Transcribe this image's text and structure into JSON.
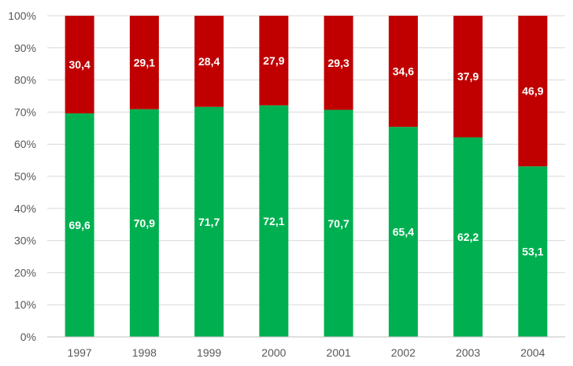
{
  "chart_data": {
    "type": "bar",
    "stacked": true,
    "percent_stacked": true,
    "title": "",
    "xlabel": "",
    "ylabel": "",
    "categories": [
      "1997",
      "1998",
      "1999",
      "2000",
      "2001",
      "2002",
      "2003",
      "2004"
    ],
    "series": [
      {
        "color": "#00b050",
        "values": [
          69.6,
          70.9,
          71.7,
          72.1,
          70.7,
          65.4,
          62.2,
          53.1
        ],
        "labels": [
          "69,6",
          "70,9",
          "71,7",
          "72,1",
          "70,7",
          "65,4",
          "62,2",
          "53,1"
        ]
      },
      {
        "color": "#c00000",
        "values": [
          30.4,
          29.1,
          28.4,
          27.9,
          29.3,
          34.6,
          37.9,
          46.9
        ],
        "labels": [
          "30,4",
          "29,1",
          "28,4",
          "27,9",
          "29,3",
          "34,6",
          "37,9",
          "46,9"
        ]
      }
    ],
    "ylim": [
      0,
      100
    ],
    "yticks": [
      "0%",
      "10%",
      "20%",
      "30%",
      "40%",
      "50%",
      "60%",
      "70%",
      "80%",
      "90%",
      "100%"
    ],
    "grid": true,
    "legend": "none"
  }
}
